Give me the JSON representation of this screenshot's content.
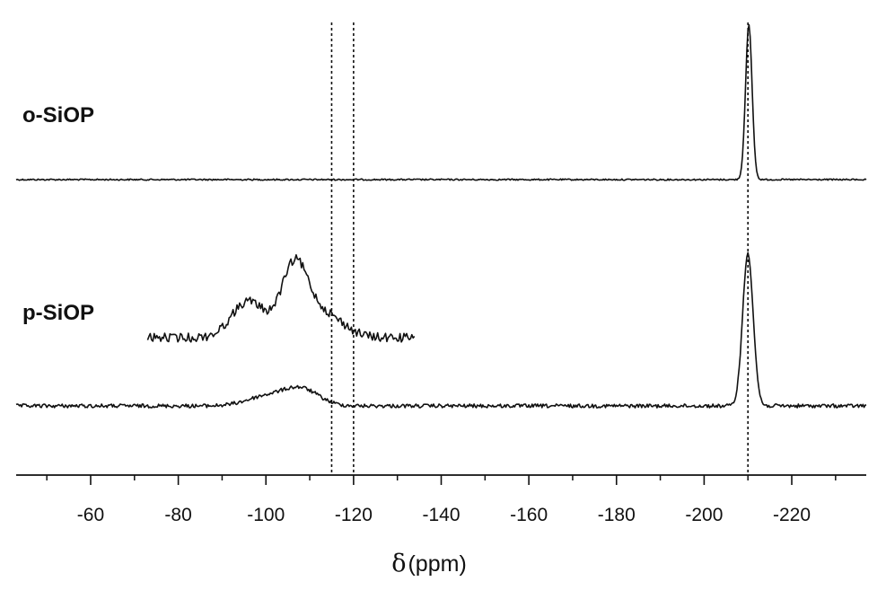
{
  "chart_data": {
    "type": "line",
    "xlabel_symbol": "δ",
    "xlabel_unit": "(ppm)",
    "xlim": [
      -43,
      -237
    ],
    "x_ticks": [
      -60,
      -80,
      -100,
      -120,
      -140,
      -160,
      -180,
      -200,
      -220
    ],
    "x_tick_labels": [
      "-60",
      "-80",
      "-100",
      "-120",
      "-140",
      "-160",
      "-180",
      "-200",
      "-220"
    ],
    "reference_lines_ppm": [
      -115,
      -120,
      -210
    ],
    "series": [
      {
        "name": "o-SiOP",
        "peaks": [
          {
            "x": -210.2,
            "y": 1.0,
            "width": 0.75
          }
        ]
      },
      {
        "name": "p-SiOP",
        "peaks": [
          {
            "x": -100,
            "y": 0.06,
            "width": 4.5
          },
          {
            "x": -108,
            "y": 0.11,
            "width": 4.0
          },
          {
            "x": -210.0,
            "y": 1.0,
            "width": 1.2
          }
        ],
        "inset": {
          "x_range": [
            -73,
            -134
          ],
          "peaks": [
            {
              "x": -96,
              "y": 0.45,
              "width": 3.8
            },
            {
              "x": -106.5,
              "y": 0.85,
              "width": 3.0
            },
            {
              "x": -113,
              "y": 0.3,
              "width": 4.5
            }
          ]
        }
      }
    ]
  },
  "colors": {
    "trace": "#111111",
    "axis": "#111111",
    "background": "#ffffff"
  }
}
